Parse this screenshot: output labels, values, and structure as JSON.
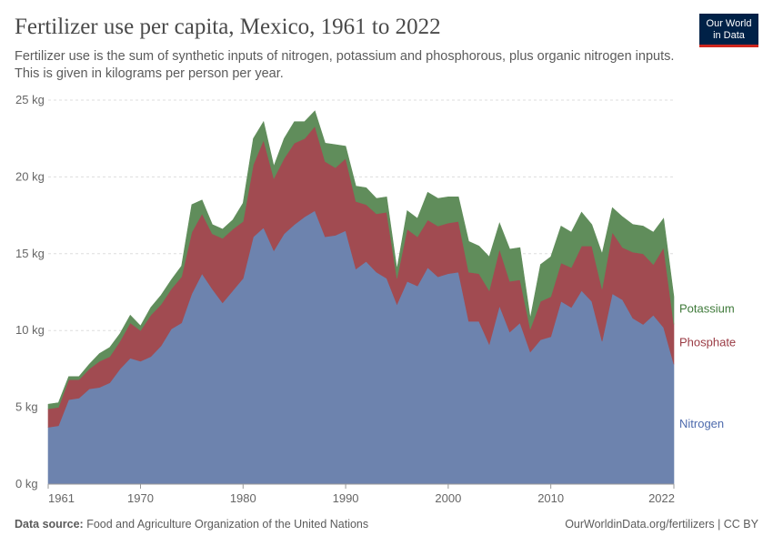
{
  "header": {
    "title": "Fertilizer use per capita, Mexico, 1961 to 2022",
    "subtitle": "Fertilizer use is the sum of synthetic inputs of nitrogen, potassium and phosphorous, plus organic nitrogen inputs. This is given in kilograms per person per year.",
    "logo_line1": "Our World",
    "logo_line2": "in Data"
  },
  "footer": {
    "source_label": "Data source:",
    "source_text": "Food and Agriculture Organization of the United Nations",
    "url_text": "OurWorldinData.org/fertilizers | CC BY"
  },
  "colors": {
    "nitrogen": "#6d83ae",
    "phosphate": "#a14b51",
    "potassium": "#608d5b",
    "nitrogen_label": "#4e6bad",
    "phosphate_label": "#9a3b44",
    "potassium_label": "#3f7a3a",
    "grid": "#dddddd",
    "axis_text": "#666666"
  },
  "chart_data": {
    "type": "area",
    "stacked": true,
    "title": "Fertilizer use per capita, Mexico, 1961 to 2022",
    "unit": "kg",
    "x_tick_labels": [
      "1961",
      "1970",
      "1980",
      "1990",
      "2000",
      "2010",
      "2022"
    ],
    "x_tick_values": [
      1961,
      1970,
      1980,
      1990,
      2000,
      2010,
      2022
    ],
    "y_tick_labels": [
      "0 kg",
      "5 kg",
      "10 kg",
      "15 kg",
      "20 kg",
      "25 kg"
    ],
    "y_tick_values": [
      0,
      5,
      10,
      15,
      20,
      25
    ],
    "xlim": [
      1961,
      2022
    ],
    "ylim": [
      0,
      25
    ],
    "grid": "horizontal dashed",
    "legend": "inline labels at right end",
    "x": [
      1961,
      1962,
      1963,
      1964,
      1965,
      1966,
      1967,
      1968,
      1969,
      1970,
      1971,
      1972,
      1973,
      1974,
      1975,
      1976,
      1977,
      1978,
      1979,
      1980,
      1981,
      1982,
      1983,
      1984,
      1985,
      1986,
      1987,
      1988,
      1989,
      1990,
      1991,
      1992,
      1993,
      1994,
      1995,
      1996,
      1997,
      1998,
      1999,
      2000,
      2001,
      2002,
      2003,
      2004,
      2005,
      2006,
      2007,
      2008,
      2009,
      2010,
      2011,
      2012,
      2013,
      2014,
      2015,
      2016,
      2017,
      2018,
      2019,
      2020,
      2021,
      2022
    ],
    "series": [
      {
        "name": "Nitrogen",
        "values": [
          3.7,
          3.8,
          5.5,
          5.6,
          6.2,
          6.3,
          6.6,
          7.5,
          8.2,
          8.0,
          8.3,
          9.0,
          10.1,
          10.5,
          12.4,
          13.7,
          12.7,
          11.8,
          12.6,
          13.4,
          16.1,
          16.7,
          15.2,
          16.3,
          16.9,
          17.4,
          17.8,
          16.1,
          16.2,
          16.5,
          14.0,
          14.5,
          13.8,
          13.4,
          11.7,
          13.2,
          12.9,
          14.1,
          13.5,
          13.7,
          13.8,
          10.6,
          10.6,
          9.1,
          11.6,
          9.9,
          10.5,
          8.6,
          9.4,
          9.6,
          11.9,
          11.5,
          12.6,
          11.9,
          9.3,
          12.4,
          12.0,
          10.8,
          10.4,
          11.0,
          10.2,
          7.8
        ]
      },
      {
        "name": "Phosphate",
        "values": [
          1.2,
          1.2,
          1.3,
          1.2,
          1.3,
          1.7,
          1.7,
          1.8,
          2.3,
          2.0,
          2.7,
          2.7,
          2.6,
          3.0,
          4.0,
          3.9,
          3.6,
          4.2,
          4.0,
          3.7,
          4.7,
          5.7,
          4.7,
          4.9,
          5.3,
          5.1,
          5.5,
          4.9,
          4.4,
          4.7,
          4.4,
          3.7,
          3.8,
          4.3,
          1.7,
          3.4,
          3.2,
          3.1,
          3.3,
          3.3,
          3.3,
          3.2,
          3.1,
          3.5,
          3.7,
          3.3,
          2.8,
          1.5,
          2.5,
          2.6,
          2.5,
          2.6,
          2.9,
          3.6,
          3.4,
          4.0,
          3.4,
          4.3,
          4.6,
          3.3,
          5.2,
          2.6
        ]
      },
      {
        "name": "Potassium",
        "values": [
          0.3,
          0.3,
          0.2,
          0.2,
          0.3,
          0.5,
          0.6,
          0.5,
          0.5,
          0.3,
          0.5,
          0.6,
          0.6,
          0.7,
          1.8,
          0.9,
          0.6,
          0.6,
          0.6,
          1.2,
          1.7,
          1.2,
          0.8,
          1.3,
          1.4,
          1.1,
          1.0,
          1.2,
          1.5,
          0.8,
          1.0,
          1.1,
          1.0,
          1.0,
          0.6,
          1.2,
          1.2,
          1.8,
          1.8,
          1.7,
          1.6,
          2.0,
          1.8,
          2.2,
          1.7,
          2.1,
          2.1,
          0.7,
          2.4,
          2.6,
          2.4,
          2.3,
          2.2,
          1.4,
          2.3,
          1.6,
          2.0,
          1.8,
          1.8,
          2.1,
          1.9,
          1.8
        ]
      }
    ]
  }
}
